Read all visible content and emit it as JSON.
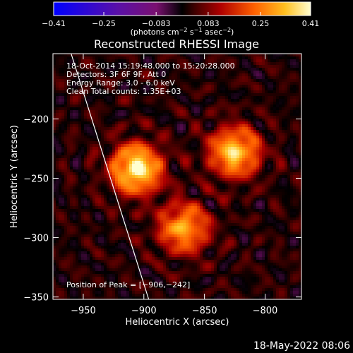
{
  "chart_data": {
    "type": "heatmap",
    "title": "Reconstructed RHESSI Image",
    "xlabel": "Heliocentric X (arcsec)",
    "ylabel": "Heliocentric Y (arcsec)",
    "xlim": [
      -975,
      -770
    ],
    "ylim": [
      -352,
      -145
    ],
    "x_ticks": [
      -950,
      -900,
      -850,
      -800
    ],
    "y_ticks": [
      -200,
      -250,
      -300,
      -350
    ],
    "x_tick_labels": [
      "−950",
      "−900",
      "−850",
      "−800"
    ],
    "y_tick_labels": [
      "−200",
      "−250",
      "−300",
      "−350"
    ],
    "colorbar": {
      "min": -0.41,
      "max": 0.41,
      "tick_values": [
        -0.41,
        -0.25,
        -0.083,
        0.083,
        0.25,
        0.41
      ],
      "tick_labels": [
        "−0.41",
        "−0.25",
        "−0.083",
        "0.083",
        "0.25",
        "0.41"
      ],
      "unit_label_parts": {
        "base": "(photons cm",
        "exp1": "−2",
        "mid": " s",
        "exp2": "−1",
        "mid2": " asec",
        "exp3": "−2",
        "end": ")"
      }
    },
    "annotations": [
      "18-Oct-2014 15:19:48.000 to 15:20:28.000",
      "Detectors: 3F 6F 9F, Att 0",
      "Energy Range: 3.0 - 6.0 keV",
      "Clean     Total counts: 1.35E+03"
    ],
    "peak_label": "Position of Peak = [−906,−242]",
    "peak": {
      "x": -906,
      "y": -242
    },
    "sources": [
      {
        "x": -906,
        "y": -242,
        "amp": 0.41
      },
      {
        "x": -825,
        "y": -228,
        "amp": 0.35
      },
      {
        "x": -867,
        "y": -292,
        "amp": 0.3
      }
    ],
    "limb_line": [
      {
        "x": -960,
        "y": -145
      },
      {
        "x": -896,
        "y": -352
      }
    ]
  },
  "footer": {
    "date": "18-May-2022 08:06"
  },
  "colors": {
    "background": "#000000",
    "text": "#ffffff",
    "limb": "#ffffff"
  }
}
